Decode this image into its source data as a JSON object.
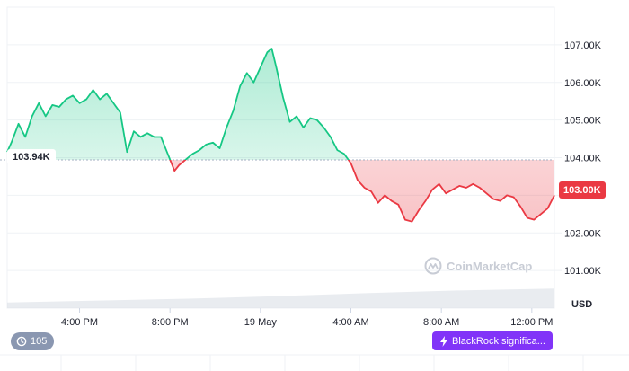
{
  "chart_data": {
    "type": "area",
    "title": "",
    "xlabel": "",
    "ylabel": "",
    "currency_label": "USD",
    "ylim": [
      100000,
      108000
    ],
    "y_ticks": [
      101000,
      102000,
      103000,
      104000,
      105000,
      106000,
      107000
    ],
    "y_tick_labels": [
      "101.00K",
      "102.00K",
      "103.00K",
      "104.00K",
      "105.00K",
      "106.00K",
      "107.00K"
    ],
    "x_ticks": [
      {
        "t": 3.2,
        "label": "4:00 PM"
      },
      {
        "t": 7.2,
        "label": "8:00 PM"
      },
      {
        "t": 11.2,
        "label": "19 May"
      },
      {
        "t": 15.2,
        "label": "4:00 AM"
      },
      {
        "t": 19.2,
        "label": "8:00 AM"
      },
      {
        "t": 23.2,
        "label": "12:00 PM"
      }
    ],
    "reference_value": 103940,
    "reference_label": "103.94K",
    "current_value": 103000,
    "current_label": "103.00K",
    "series": [
      {
        "values": [
          [
            0.0,
            104150
          ],
          [
            0.2,
            104420
          ],
          [
            0.5,
            104900
          ],
          [
            0.8,
            104550
          ],
          [
            1.1,
            105100
          ],
          [
            1.4,
            105450
          ],
          [
            1.7,
            105100
          ],
          [
            2.0,
            105400
          ],
          [
            2.3,
            105350
          ],
          [
            2.6,
            105550
          ],
          [
            2.9,
            105650
          ],
          [
            3.2,
            105450
          ],
          [
            3.5,
            105550
          ],
          [
            3.8,
            105800
          ],
          [
            4.1,
            105550
          ],
          [
            4.4,
            105700
          ],
          [
            4.7,
            105450
          ],
          [
            5.0,
            105200
          ],
          [
            5.3,
            104150
          ],
          [
            5.6,
            104700
          ],
          [
            5.9,
            104550
          ],
          [
            6.2,
            104650
          ],
          [
            6.5,
            104550
          ],
          [
            6.8,
            104550
          ],
          [
            7.1,
            104100
          ],
          [
            7.4,
            103650
          ],
          [
            7.6,
            103800
          ],
          [
            7.9,
            103950
          ],
          [
            8.2,
            104100
          ],
          [
            8.5,
            104200
          ],
          [
            8.8,
            104350
          ],
          [
            9.1,
            104400
          ],
          [
            9.4,
            104250
          ],
          [
            9.7,
            104800
          ],
          [
            10.0,
            105250
          ],
          [
            10.3,
            105900
          ],
          [
            10.6,
            106250
          ],
          [
            10.9,
            106000
          ],
          [
            11.2,
            106400
          ],
          [
            11.5,
            106800
          ],
          [
            11.7,
            106900
          ],
          [
            11.9,
            106400
          ],
          [
            12.2,
            105600
          ],
          [
            12.5,
            104950
          ],
          [
            12.8,
            105100
          ],
          [
            13.1,
            104800
          ],
          [
            13.4,
            105050
          ],
          [
            13.7,
            105000
          ],
          [
            14.0,
            104800
          ],
          [
            14.3,
            104550
          ],
          [
            14.6,
            104200
          ],
          [
            14.9,
            104100
          ],
          [
            15.2,
            103850
          ],
          [
            15.5,
            103400
          ],
          [
            15.8,
            103200
          ],
          [
            16.1,
            103100
          ],
          [
            16.4,
            102800
          ],
          [
            16.7,
            103000
          ],
          [
            17.0,
            102850
          ],
          [
            17.3,
            102750
          ],
          [
            17.6,
            102350
          ],
          [
            17.9,
            102300
          ],
          [
            18.2,
            102600
          ],
          [
            18.5,
            102850
          ],
          [
            18.8,
            103150
          ],
          [
            19.1,
            103300
          ],
          [
            19.4,
            103050
          ],
          [
            19.7,
            103150
          ],
          [
            20.0,
            103250
          ],
          [
            20.3,
            103200
          ],
          [
            20.6,
            103300
          ],
          [
            20.9,
            103200
          ],
          [
            21.2,
            103050
          ],
          [
            21.5,
            102900
          ],
          [
            21.8,
            102850
          ],
          [
            22.1,
            103000
          ],
          [
            22.4,
            102950
          ],
          [
            22.7,
            102700
          ],
          [
            23.0,
            102400
          ],
          [
            23.3,
            102350
          ],
          [
            23.6,
            102500
          ],
          [
            23.9,
            102650
          ],
          [
            24.2,
            103000
          ]
        ]
      }
    ],
    "volume": [
      [
        0.0,
        100150
      ],
      [
        4.0,
        100200
      ],
      [
        8.0,
        100250
      ],
      [
        12.0,
        100320
      ],
      [
        16.0,
        100400
      ],
      [
        20.0,
        100470
      ],
      [
        24.2,
        100520
      ]
    ],
    "colors": {
      "up": "#16c784",
      "down": "#ea3943",
      "grid": "#eff2f5",
      "reference_line": "#a6b0c3",
      "volume": "#d7dce3"
    }
  },
  "badges": {
    "events_count": "105",
    "news_headline": "BlackRock significa..."
  },
  "watermark": {
    "brand": "CoinMarketCap"
  },
  "icons": {
    "events": "history-icon",
    "news": "lightning-icon",
    "brand": "coinmarketcap-logo-icon"
  }
}
